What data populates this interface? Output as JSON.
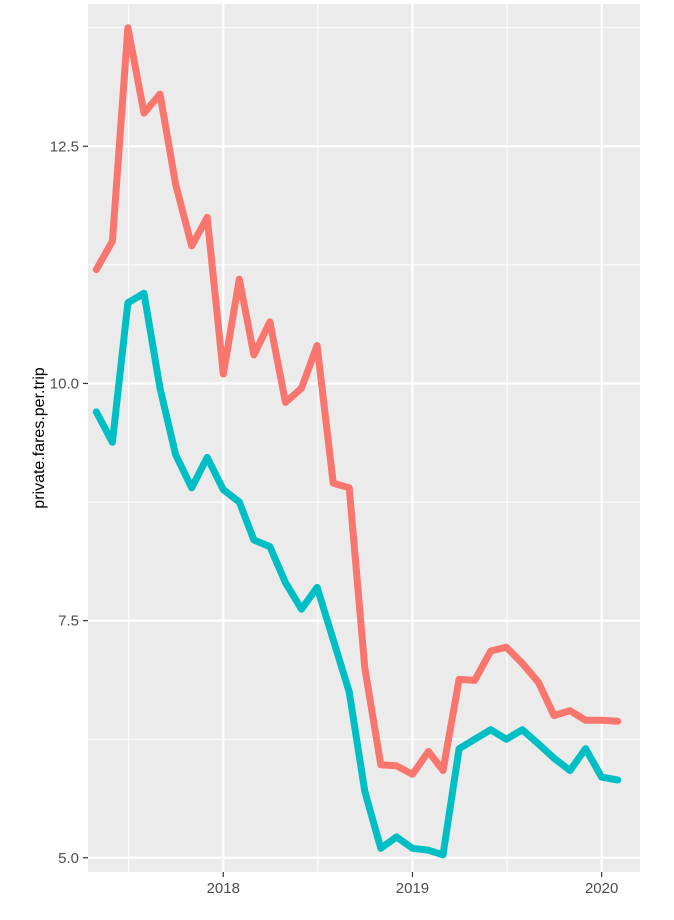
{
  "chart_data": {
    "type": "line",
    "title": "",
    "xlabel": "",
    "ylabel": "private.fares.per.trip",
    "x_tick_labels": [
      "2018",
      "2019",
      "2020"
    ],
    "x_tick_dates": [
      "2018-01-01",
      "2019-01-01",
      "2020-01-01"
    ],
    "y_ticks": [
      5.0,
      7.5,
      10.0,
      12.5
    ],
    "y_tick_labels": [
      "5.0",
      "7.5",
      "10.0",
      "12.5"
    ],
    "xlim": [
      "2017-04-15",
      "2020-03-15"
    ],
    "ylim": [
      4.85,
      14.0
    ],
    "grid": true,
    "legend": "none",
    "panel_background": "#EBEBEB",
    "gridline_color": "#FFFFFF",
    "series": [
      {
        "color": "#F8766D",
        "points": [
          [
            "2017-05-01",
            11.2
          ],
          [
            "2017-06-01",
            11.5
          ],
          [
            "2017-07-01",
            13.75
          ],
          [
            "2017-08-01",
            12.85
          ],
          [
            "2017-09-01",
            13.05
          ],
          [
            "2017-10-01",
            12.1
          ],
          [
            "2017-11-01",
            11.45
          ],
          [
            "2017-12-01",
            11.75
          ],
          [
            "2018-01-01",
            10.1
          ],
          [
            "2018-02-01",
            11.1
          ],
          [
            "2018-03-01",
            10.3
          ],
          [
            "2018-04-01",
            10.65
          ],
          [
            "2018-05-01",
            9.8
          ],
          [
            "2018-06-01",
            9.95
          ],
          [
            "2018-07-01",
            10.4
          ],
          [
            "2018-08-01",
            8.95
          ],
          [
            "2018-09-01",
            8.9
          ],
          [
            "2018-10-01",
            7.0
          ],
          [
            "2018-11-01",
            5.98
          ],
          [
            "2018-12-01",
            5.97
          ],
          [
            "2019-01-01",
            5.88
          ],
          [
            "2019-02-01",
            6.12
          ],
          [
            "2019-03-01",
            5.92
          ],
          [
            "2019-04-01",
            6.88
          ],
          [
            "2019-05-01",
            6.87
          ],
          [
            "2019-06-01",
            7.18
          ],
          [
            "2019-07-01",
            7.22
          ],
          [
            "2019-08-01",
            7.05
          ],
          [
            "2019-09-01",
            6.85
          ],
          [
            "2019-10-01",
            6.5
          ],
          [
            "2019-11-01",
            6.55
          ],
          [
            "2019-12-01",
            6.45
          ],
          [
            "2020-01-01",
            6.45
          ],
          [
            "2020-02-01",
            6.44
          ]
        ]
      },
      {
        "color": "#00BFC4",
        "points": [
          [
            "2017-05-01",
            9.7
          ],
          [
            "2017-06-01",
            9.38
          ],
          [
            "2017-07-01",
            10.85
          ],
          [
            "2017-08-01",
            10.95
          ],
          [
            "2017-09-01",
            9.95
          ],
          [
            "2017-10-01",
            9.25
          ],
          [
            "2017-11-01",
            8.9
          ],
          [
            "2017-12-01",
            9.22
          ],
          [
            "2018-01-01",
            8.88
          ],
          [
            "2018-02-01",
            8.75
          ],
          [
            "2018-03-01",
            8.35
          ],
          [
            "2018-04-01",
            8.28
          ],
          [
            "2018-05-01",
            7.9
          ],
          [
            "2018-06-01",
            7.62
          ],
          [
            "2018-07-01",
            7.85
          ],
          [
            "2018-08-01",
            7.3
          ],
          [
            "2018-09-01",
            6.75
          ],
          [
            "2018-10-01",
            5.7
          ],
          [
            "2018-11-01",
            5.1
          ],
          [
            "2018-12-01",
            5.22
          ],
          [
            "2019-01-01",
            5.1
          ],
          [
            "2019-02-01",
            5.08
          ],
          [
            "2019-03-01",
            5.03
          ],
          [
            "2019-04-01",
            6.15
          ],
          [
            "2019-05-01",
            6.25
          ],
          [
            "2019-06-01",
            6.35
          ],
          [
            "2019-07-01",
            6.25
          ],
          [
            "2019-08-01",
            6.35
          ],
          [
            "2019-09-01",
            6.2
          ],
          [
            "2019-10-01",
            6.05
          ],
          [
            "2019-11-01",
            5.92
          ],
          [
            "2019-12-01",
            6.15
          ],
          [
            "2020-01-01",
            5.85
          ],
          [
            "2020-02-01",
            5.82
          ]
        ]
      }
    ]
  }
}
